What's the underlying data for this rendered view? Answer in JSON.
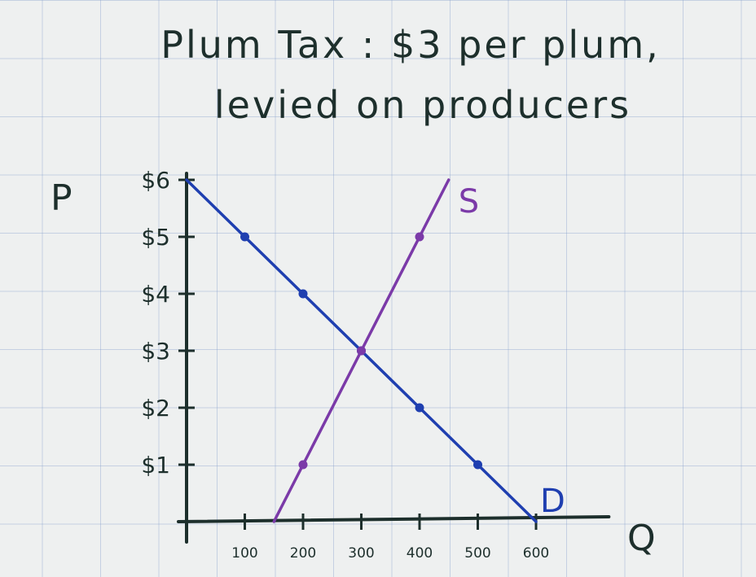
{
  "title_lines": [
    "Plum Tax : $3 per plum,",
    "levied on producers"
  ],
  "chart_data": {
    "type": "line",
    "title": "Plum Tax : $3 per plum, levied on producers",
    "xlabel": "Q",
    "ylabel": "P",
    "xlim": [
      0,
      700
    ],
    "ylim": [
      0,
      6
    ],
    "x_ticks": [
      100,
      200,
      300,
      400,
      500,
      600
    ],
    "x_tick_labels": [
      "100",
      "200",
      "300",
      "400",
      "500",
      "600"
    ],
    "y_ticks": [
      1,
      2,
      3,
      4,
      5,
      6
    ],
    "y_tick_labels": [
      "$1",
      "$2",
      "$3",
      "$4",
      "$5",
      "$6"
    ],
    "grid": true,
    "series": [
      {
        "name": "D",
        "color": "#1f3fb0",
        "line": [
          [
            0,
            6
          ],
          [
            600,
            0
          ]
        ],
        "points": [
          [
            100,
            5
          ],
          [
            200,
            4
          ],
          [
            300,
            3
          ],
          [
            400,
            2
          ],
          [
            500,
            1
          ]
        ]
      },
      {
        "name": "S",
        "color": "#7b3aa8",
        "line": [
          [
            150,
            0
          ],
          [
            200,
            1
          ],
          [
            300,
            3
          ],
          [
            400,
            5
          ],
          [
            450,
            6
          ]
        ],
        "points": [
          [
            200,
            1
          ],
          [
            300,
            3
          ],
          [
            400,
            5
          ]
        ]
      }
    ]
  }
}
